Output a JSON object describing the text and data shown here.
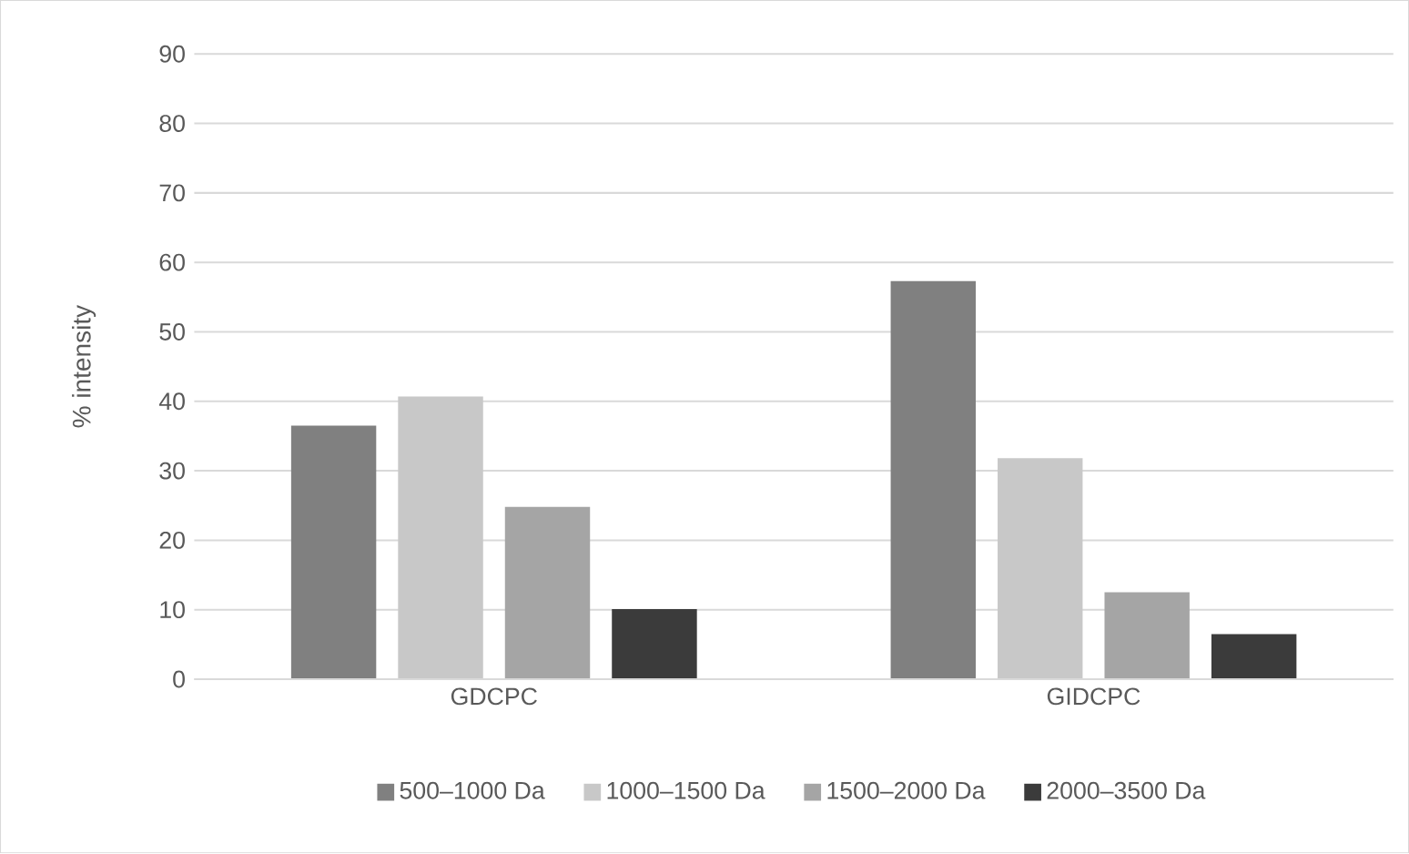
{
  "chart_data": {
    "type": "bar",
    "ylabel": "% intensity",
    "categories": [
      "GDCPC",
      "GIDCPC"
    ],
    "series": [
      {
        "name": "500–1000 Da",
        "color": "#808080",
        "values": [
          36.5,
          57.3
        ]
      },
      {
        "name": "1000–1500 Da",
        "color": "#c8c8c8",
        "values": [
          40.7,
          31.8
        ]
      },
      {
        "name": "1500–2000 Da",
        "color": "#a5a5a5",
        "values": [
          24.8,
          12.5
        ]
      },
      {
        "name": "2000–3500 Da",
        "color": "#3b3b3b",
        "values": [
          10.1,
          6.5
        ]
      }
    ],
    "ylim": [
      0,
      90
    ],
    "yticks": [
      0,
      10,
      20,
      30,
      40,
      50,
      60,
      70,
      80,
      90
    ],
    "grid": "y",
    "legend": "bottom"
  }
}
